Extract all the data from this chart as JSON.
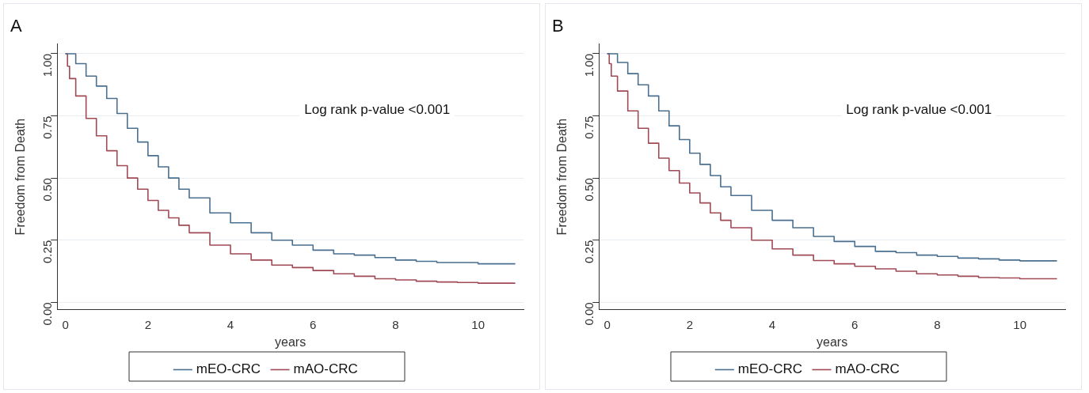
{
  "chart_data": [
    {
      "type": "step",
      "title": "A",
      "xlabel": "years",
      "ylabel": "Freedom from Death",
      "annotations": [
        "Log rank p-value <0.001"
      ],
      "legend": "bottom",
      "grid": "y",
      "xlim": [
        -0.2,
        11.1
      ],
      "xticks": [
        0,
        2,
        4,
        6,
        8,
        10
      ],
      "ylim": [
        -0.03,
        1.04
      ],
      "yticks": [
        {
          "value": 0,
          "label": "0.00"
        },
        {
          "value": 0.25,
          "label": "0.25"
        },
        {
          "value": 0.5,
          "label": "0.50"
        },
        {
          "value": 0.75,
          "label": "0.75"
        },
        {
          "value": 1,
          "label": "1.00"
        }
      ],
      "series": [
        {
          "name": "mEO-CRC",
          "color": "#4a6f8f",
          "x": [
            0,
            0.25,
            0.5,
            0.75,
            1,
            1.25,
            1.5,
            1.75,
            2,
            2.25,
            2.5,
            2.75,
            3,
            3.5,
            4,
            4.5,
            5,
            5.5,
            6,
            6.5,
            7,
            7.5,
            8,
            8.5,
            9,
            9.5,
            10,
            10.9
          ],
          "values": [
            1,
            0.96,
            0.91,
            0.87,
            0.82,
            0.76,
            0.7,
            0.645,
            0.59,
            0.545,
            0.5,
            0.455,
            0.42,
            0.36,
            0.32,
            0.28,
            0.25,
            0.23,
            0.21,
            0.195,
            0.19,
            0.18,
            0.17,
            0.165,
            0.16,
            0.16,
            0.155,
            0.155
          ]
        },
        {
          "name": "mAO-CRC",
          "color": "#a04a55",
          "x": [
            0,
            0.05,
            0.1,
            0.25,
            0.5,
            0.75,
            1,
            1.25,
            1.5,
            1.75,
            2,
            2.25,
            2.5,
            2.75,
            3,
            3.5,
            4,
            4.5,
            5,
            5.5,
            6,
            6.5,
            7,
            7.5,
            8,
            8.5,
            9,
            9.5,
            10,
            10.9
          ],
          "values": [
            1,
            0.95,
            0.9,
            0.83,
            0.74,
            0.67,
            0.61,
            0.55,
            0.5,
            0.455,
            0.41,
            0.37,
            0.34,
            0.31,
            0.28,
            0.23,
            0.195,
            0.17,
            0.15,
            0.14,
            0.128,
            0.115,
            0.105,
            0.095,
            0.09,
            0.085,
            0.082,
            0.08,
            0.077,
            0.077
          ]
        }
      ]
    },
    {
      "type": "step",
      "title": "B",
      "xlabel": "years",
      "ylabel": "Freedom from Death",
      "annotations": [
        "Log rank p-value <0.001"
      ],
      "legend": "bottom",
      "grid": "y",
      "xlim": [
        -0.2,
        11.1
      ],
      "xticks": [
        0,
        2,
        4,
        6,
        8,
        10
      ],
      "ylim": [
        -0.03,
        1.04
      ],
      "yticks": [
        {
          "value": 0,
          "label": "0.00"
        },
        {
          "value": 0.25,
          "label": "0.25"
        },
        {
          "value": 0.5,
          "label": "0.50"
        },
        {
          "value": 0.75,
          "label": "0.75"
        },
        {
          "value": 1,
          "label": "1.00"
        }
      ],
      "series": [
        {
          "name": "mEO-CRC",
          "color": "#4a6f8f",
          "x": [
            0,
            0.25,
            0.5,
            0.75,
            1,
            1.25,
            1.5,
            1.75,
            2,
            2.25,
            2.5,
            2.75,
            3,
            3.5,
            4,
            4.5,
            5,
            5.5,
            6,
            6.5,
            7,
            7.5,
            8,
            8.5,
            9,
            9.5,
            10,
            10.9
          ],
          "values": [
            1,
            0.965,
            0.92,
            0.875,
            0.83,
            0.77,
            0.71,
            0.655,
            0.6,
            0.555,
            0.51,
            0.465,
            0.43,
            0.37,
            0.33,
            0.3,
            0.265,
            0.245,
            0.225,
            0.205,
            0.2,
            0.19,
            0.185,
            0.178,
            0.175,
            0.17,
            0.167,
            0.167
          ]
        },
        {
          "name": "mAO-CRC",
          "color": "#a04a55",
          "x": [
            0,
            0.05,
            0.1,
            0.25,
            0.5,
            0.75,
            1,
            1.25,
            1.5,
            1.75,
            2,
            2.25,
            2.5,
            2.75,
            3,
            3.5,
            4,
            4.5,
            5,
            5.5,
            6,
            6.5,
            7,
            7.5,
            8,
            8.5,
            9,
            9.5,
            10,
            10.9
          ],
          "values": [
            1,
            0.96,
            0.91,
            0.85,
            0.77,
            0.7,
            0.64,
            0.58,
            0.53,
            0.48,
            0.44,
            0.4,
            0.36,
            0.33,
            0.3,
            0.25,
            0.215,
            0.19,
            0.168,
            0.155,
            0.145,
            0.135,
            0.125,
            0.115,
            0.11,
            0.105,
            0.1,
            0.098,
            0.095,
            0.095
          ]
        }
      ]
    }
  ]
}
